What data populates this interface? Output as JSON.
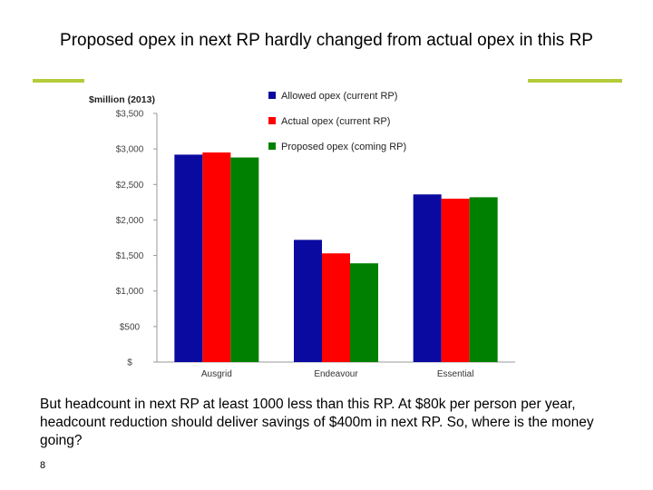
{
  "slide": {
    "title": "Proposed opex in next RP hardly changed from actual opex in this RP",
    "body": "But headcount in next RP at least 1000 less than this RP. At $80k per person per year, headcount reduction should deliver savings of $400m in next RP. So, where is the money going?",
    "page_number": "8"
  },
  "colors": {
    "allowed": "#0a0aa0",
    "actual": "#ff0000",
    "proposed": "#008000",
    "rule": "#b5cc3a"
  },
  "chart_data": {
    "type": "bar",
    "title": "",
    "ylabel": "$million (2013)",
    "xlabel": "",
    "categories": [
      "Ausgrid",
      "Endeavour",
      "Essential"
    ],
    "series": [
      {
        "name": "Allowed opex (current RP)",
        "color_key": "allowed",
        "values": [
          2920,
          1720,
          2360
        ]
      },
      {
        "name": "Actual opex (current RP)",
        "color_key": "actual",
        "values": [
          2950,
          1530,
          2300
        ]
      },
      {
        "name": "Proposed opex (coming RP)",
        "color_key": "proposed",
        "values": [
          2880,
          1390,
          2320
        ]
      }
    ],
    "ylim": [
      0,
      3500
    ],
    "yticks": [
      0,
      500,
      1000,
      1500,
      2000,
      2500,
      3000,
      3500
    ],
    "ytick_labels": [
      "$",
      "$500",
      "$1,000",
      "$1,500",
      "$2,000",
      "$2,500",
      "$3,000",
      "$3,500"
    ],
    "legend_position": "top-right",
    "grid": false
  }
}
